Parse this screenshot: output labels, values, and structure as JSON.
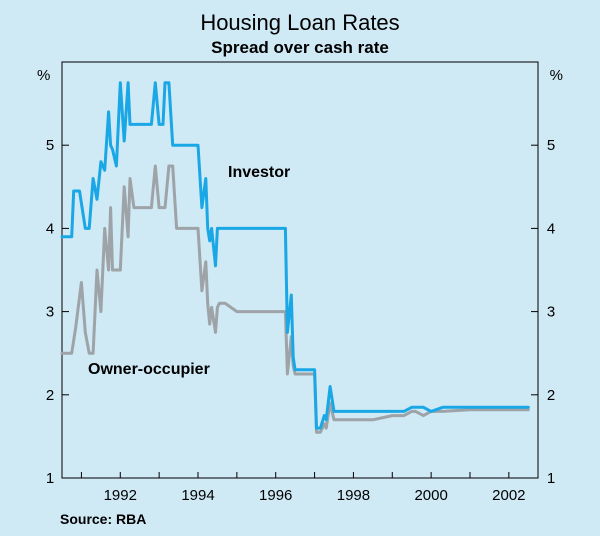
{
  "chart_data": {
    "type": "line",
    "title": "Housing Loan Rates",
    "subtitle": "Spread over cash rate",
    "y_unit": "%",
    "ylim": [
      1,
      6
    ],
    "yticks": [
      1,
      2,
      3,
      4,
      5
    ],
    "xlim": [
      1990.5,
      2002.75
    ],
    "xticks": [
      "1992",
      "1994",
      "1996",
      "1998",
      "2000",
      "2002"
    ],
    "grid": false,
    "source": "Source: RBA",
    "colors": {
      "investor": "#1aa7e6",
      "owner_occupier": "#9ea3a8"
    },
    "series": [
      {
        "name": "Investor",
        "x": [
          1990.5,
          1990.75,
          1990.8,
          1990.95,
          1991.1,
          1991.2,
          1991.3,
          1991.4,
          1991.5,
          1991.6,
          1991.7,
          1991.75,
          1991.8,
          1991.9,
          1992.0,
          1992.1,
          1992.2,
          1992.25,
          1992.35,
          1992.4,
          1992.5,
          1992.6,
          1992.8,
          1992.9,
          1993.0,
          1993.05,
          1993.1,
          1993.15,
          1993.25,
          1993.35,
          1993.45,
          1993.5,
          1993.55,
          1993.6,
          1993.7,
          1993.8,
          1994.0,
          1994.1,
          1994.2,
          1994.25,
          1994.3,
          1994.35,
          1994.45,
          1994.5,
          1994.55,
          1994.65,
          1994.7,
          1995.0,
          1995.5,
          1996.0,
          1996.25,
          1996.3,
          1996.4,
          1996.45,
          1996.5,
          1996.55,
          1996.6,
          1996.7,
          1997.0,
          1997.05,
          1997.15,
          1997.25,
          1997.3,
          1997.4,
          1997.5,
          1997.6,
          1998.0,
          1998.5,
          1999.0,
          1999.3,
          1999.5,
          1999.55,
          1999.6,
          1999.8,
          2000.0,
          2000.3,
          2001.0,
          2002.5
        ],
        "values": [
          3.9,
          3.9,
          4.45,
          4.45,
          4.0,
          4.0,
          4.6,
          4.35,
          4.8,
          4.7,
          5.4,
          5.0,
          4.95,
          4.75,
          5.75,
          5.05,
          5.75,
          5.25,
          5.25,
          5.25,
          5.25,
          5.25,
          5.25,
          5.75,
          5.25,
          5.25,
          5.25,
          5.75,
          5.75,
          5.0,
          5.0,
          5.0,
          5.0,
          5.0,
          5.0,
          5.0,
          5.0,
          4.25,
          4.6,
          4.0,
          3.85,
          4.0,
          3.55,
          4.0,
          4.0,
          4.0,
          4.0,
          4.0,
          4.0,
          4.0,
          4.0,
          2.75,
          3.2,
          2.45,
          2.3,
          2.3,
          2.3,
          2.3,
          2.3,
          1.6,
          1.6,
          1.75,
          1.7,
          2.1,
          1.8,
          1.8,
          1.8,
          1.8,
          1.8,
          1.8,
          1.85,
          1.85,
          1.85,
          1.85,
          1.8,
          1.85,
          1.85,
          1.85
        ]
      },
      {
        "name": "Owner-occupier",
        "x": [
          1990.5,
          1990.75,
          1990.85,
          1991.0,
          1991.1,
          1991.2,
          1991.3,
          1991.4,
          1991.5,
          1991.6,
          1991.7,
          1991.75,
          1991.8,
          1991.9,
          1992.0,
          1992.1,
          1992.2,
          1992.25,
          1992.35,
          1992.5,
          1992.8,
          1992.9,
          1993.0,
          1993.05,
          1993.15,
          1993.25,
          1993.3,
          1993.35,
          1993.45,
          1993.5,
          1993.6,
          1993.7,
          1993.8,
          1994.0,
          1994.1,
          1994.2,
          1994.25,
          1994.3,
          1994.35,
          1994.45,
          1994.5,
          1994.55,
          1994.7,
          1995.0,
          1995.5,
          1996.0,
          1996.25,
          1996.3,
          1996.4,
          1996.45,
          1996.5,
          1996.7,
          1997.0,
          1997.05,
          1997.15,
          1997.25,
          1997.3,
          1997.4,
          1997.5,
          1998.0,
          1998.5,
          1999.0,
          1999.3,
          1999.5,
          1999.55,
          1999.6,
          1999.8,
          2000.0,
          2000.3,
          2001.0,
          2002.5
        ],
        "values": [
          2.5,
          2.5,
          2.8,
          3.35,
          2.75,
          2.5,
          2.5,
          3.5,
          3.0,
          4.0,
          3.5,
          4.25,
          3.5,
          3.5,
          3.5,
          4.5,
          3.9,
          4.6,
          4.25,
          4.25,
          4.25,
          4.75,
          4.25,
          4.25,
          4.25,
          4.75,
          4.75,
          4.75,
          4.0,
          4.0,
          4.0,
          4.0,
          4.0,
          4.0,
          3.25,
          3.6,
          3.1,
          2.85,
          3.05,
          2.75,
          3.05,
          3.1,
          3.1,
          3.0,
          3.0,
          3.0,
          3.0,
          2.25,
          2.7,
          2.35,
          2.25,
          2.25,
          2.25,
          1.55,
          1.55,
          1.65,
          1.6,
          1.9,
          1.7,
          1.7,
          1.7,
          1.75,
          1.75,
          1.8,
          1.8,
          1.8,
          1.75,
          1.8,
          1.8,
          1.82,
          1.82
        ]
      }
    ]
  }
}
